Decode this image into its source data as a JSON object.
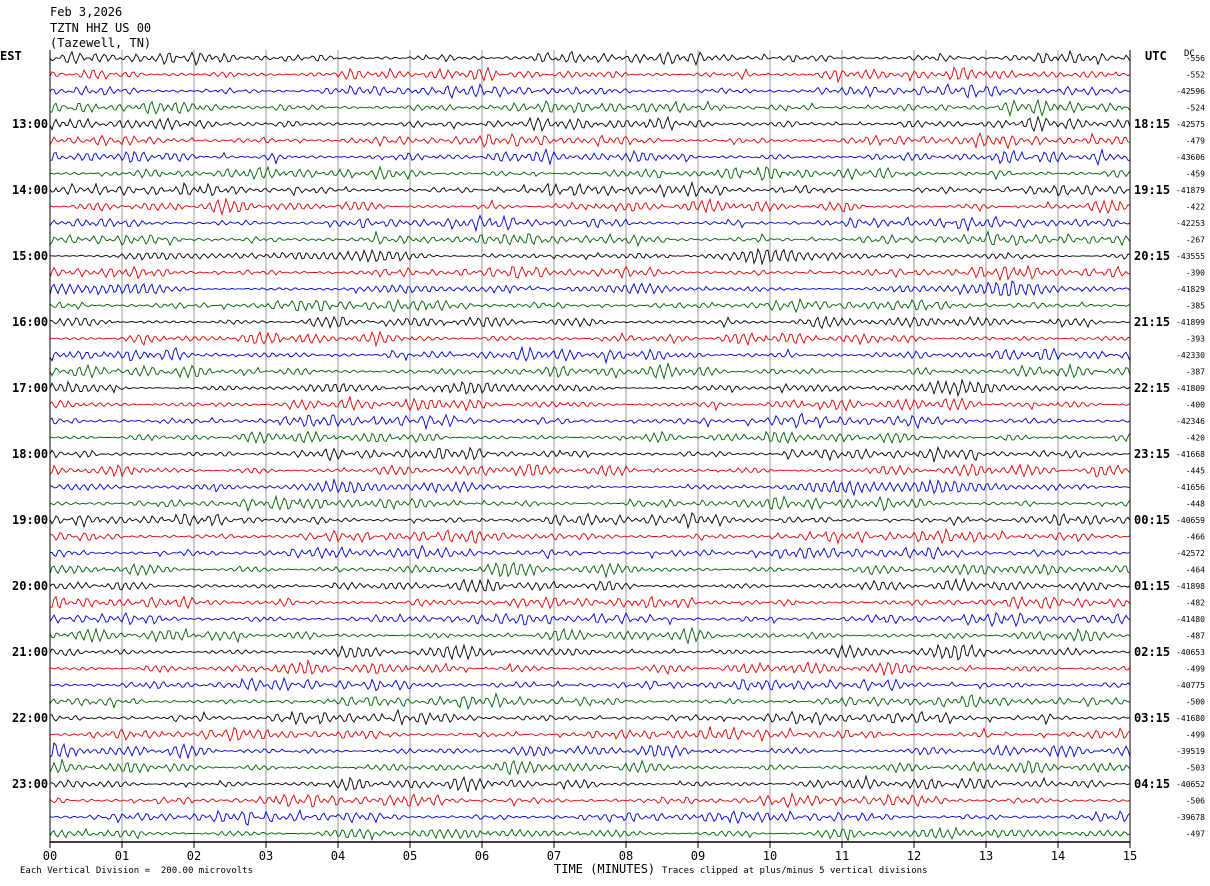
{
  "header": {
    "date": "Feb 3,2026",
    "station": "TZTN HHZ US 00",
    "location": "(Tazewell, TN)"
  },
  "left_timezone": "EST",
  "right_timezone": "UTC",
  "dc_header": "DC",
  "footer": {
    "scale_note": "Each Vertical Division =  200.00 microvolts",
    "clip_note": "Traces clipped at plus/minus 5 vertical divisions"
  },
  "chart_data": {
    "type": "seismogram",
    "xlabel": "TIME (MINUTES)",
    "x_ticks": [
      "00",
      "01",
      "02",
      "03",
      "04",
      "05",
      "06",
      "07",
      "08",
      "09",
      "10",
      "11",
      "12",
      "13",
      "14",
      "15"
    ],
    "xlim": [
      0,
      15
    ],
    "trace_colors": [
      "#000000",
      "#e00000",
      "#0000d0",
      "#006000"
    ],
    "left_hour_labels": [
      "13:00",
      "14:00",
      "15:00",
      "16:00",
      "17:00",
      "18:00",
      "19:00",
      "20:00",
      "21:00",
      "22:00",
      "23:00"
    ],
    "right_hour_labels": [
      "18:15",
      "19:15",
      "20:15",
      "21:15",
      "22:15",
      "23:15",
      "00:15",
      "01:15",
      "02:15",
      "03:15",
      "04:15"
    ],
    "dc_offsets": [
      "-556",
      "-552",
      "-42596",
      "-524",
      "-42575",
      "-479",
      "-43606",
      "-459",
      "-41879",
      "-422",
      "-42253",
      "-267",
      "-43555",
      "-390",
      "-41829",
      "-385",
      "-41899",
      "-393",
      "-42330",
      "-387",
      "-41809",
      "-400",
      "-42346",
      "-420",
      "-41668",
      "-445",
      "-41656",
      "-448",
      "-40659",
      "-466",
      "-42572",
      "-464",
      "-41898",
      "-482",
      "-41480",
      "-487",
      "-40653",
      "-499",
      "-40775",
      "-500",
      "-41680",
      "-499",
      "-39519",
      "-503",
      "-40652",
      "-506",
      "-39678",
      "-497"
    ]
  }
}
